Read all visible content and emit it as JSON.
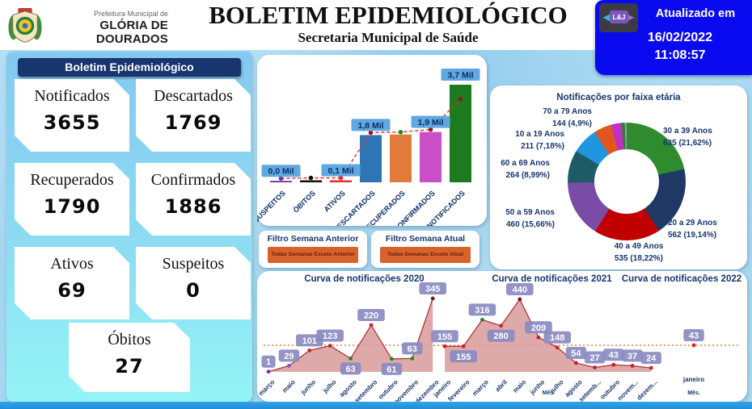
{
  "header": {
    "org_small": "Prefeitura Municipal de",
    "org_name": "GLÓRIA DE DOURADOS",
    "title": "BOLETIM EPIDEMIOLÓGICO",
    "subtitle": "Secretaria Municipal de Saúde"
  },
  "update_box": {
    "logo_text": "L&J",
    "label": "Atualizado em",
    "date": "16/02/2022",
    "time": "11:08:57",
    "bg_color": "#0a0af0"
  },
  "summary_panel": {
    "title": "Boletim Epidemiológico",
    "cards": [
      {
        "label": "Notificados",
        "value": "3655"
      },
      {
        "label": "Descartados",
        "value": "1769"
      },
      {
        "label": "Recuperados",
        "value": "1790"
      },
      {
        "label": "Confirmados",
        "value": "1886"
      },
      {
        "label": "Ativos",
        "value": "69"
      },
      {
        "label": "Suspeitos",
        "value": "0"
      },
      {
        "label": "Óbitos",
        "value": "27"
      }
    ]
  },
  "filters": [
    {
      "title": "Filtro Semana Anterior",
      "button_label": "Todas Semanas Exceto Anterior"
    },
    {
      "title": "Filtro Semana Atual",
      "button_label": "Todas Semanas Exceto Atual"
    }
  ],
  "chart_data": [
    {
      "type": "bar",
      "name": "totais-por-status",
      "categories": [
        "SUSPEITOS",
        "ÓBITOS",
        "ATIVOS",
        "DESCARTADOS",
        "RECUPERADOS",
        "CONFIRMADOS",
        "NOTIFICADOS"
      ],
      "values": [
        0,
        27,
        69,
        1769,
        1790,
        1886,
        3655
      ],
      "value_labels": [
        "0,0 Mil",
        "",
        "0,1 Mil",
        "1,8 Mil",
        "",
        "1,9 Mil",
        "3,7 Mil"
      ],
      "bar_colors": [
        "#7030a0",
        "#111111",
        "#e03030",
        "#2e75b6",
        "#e07b39",
        "#c94fc9",
        "#1e7a1e"
      ],
      "dot_colors": [
        "#7030a0",
        "#111111",
        "#e03030",
        "#8b1a1a",
        "#1f8a1f",
        "#8b1a1a",
        "#8b1a1a"
      ],
      "trend_line_color": "#ff2222",
      "label_bg": "#5fa8e0",
      "label_fg": "#0e2b66",
      "ylim": [
        0,
        3700
      ]
    },
    {
      "type": "pie",
      "name": "faixa-etaria",
      "title": "Notificações por faixa etária",
      "slices": [
        {
          "label": "30 a 39 Anos",
          "text": "635 (21,62%)",
          "value": 635,
          "pct": 21.62,
          "color": "#2e8b2e"
        },
        {
          "label": "20 a 29 Anos",
          "text": "562 (19,14%)",
          "value": 562,
          "pct": 19.14,
          "color": "#1f3864"
        },
        {
          "label": "40 a 49 Anos",
          "text": "535 (18,22%)",
          "value": 535,
          "pct": 18.22,
          "color": "#c00000"
        },
        {
          "label": "50 a 59 Anos",
          "text": "460 (15,66%)",
          "value": 460,
          "pct": 15.66,
          "color": "#7a4ca8"
        },
        {
          "label": "60 a 69 Anos",
          "text": "264 (8,99%)",
          "value": 264,
          "pct": 8.99,
          "color": "#1f5b66"
        },
        {
          "label": "10 a 19 Anos",
          "text": "211 (7,18%)",
          "value": 211,
          "pct": 7.18,
          "color": "#2196e0"
        },
        {
          "label": "70 a 79 Anos",
          "text": "144 (4,9%)",
          "value": 144,
          "pct": 4.9,
          "color": "#e0561e"
        },
        {
          "label": "",
          "text": "",
          "value": 84,
          "pct": 2.86,
          "color": "#c32fc3"
        },
        {
          "label": "",
          "text": "",
          "value": 27,
          "pct": 0.92,
          "color": "#2f7f33"
        },
        {
          "label": "",
          "text": "",
          "value": 15,
          "pct": 0.51,
          "color": "#90a0ac"
        }
      ]
    },
    {
      "type": "area",
      "name": "curva-2020",
      "title": "Curva de notificações 2020",
      "x": [
        "março",
        "maio",
        "junho",
        "julho",
        "agosto",
        "setembro",
        "outubro",
        "novembro",
        "dezembro"
      ],
      "values": [
        1,
        29,
        101,
        123,
        63,
        220,
        61,
        63,
        345
      ],
      "label_below_idx": [
        4,
        6
      ],
      "dot_colors": [
        "#7030a0",
        "#8f4fbf",
        "#c02233",
        "#c02233",
        "#1f8a1f",
        "#c02233",
        "#1f8a1f",
        "#1f8a1f",
        "#7b1022"
      ],
      "xlabel": ""
    },
    {
      "type": "area",
      "name": "curva-2021",
      "title": "Curva de notificações 2021",
      "x": [
        "janeiro",
        "fevereiro",
        "março",
        "abril",
        "maio",
        "junho",
        "julho",
        "agosto",
        "setemb...",
        "outubro",
        "novem...",
        "dezem..."
      ],
      "values": [
        155,
        155,
        316,
        280,
        440,
        209,
        148,
        54,
        27,
        43,
        37,
        24
      ],
      "label_below_idx": [
        1,
        3
      ],
      "dot_colors": [
        "#c02233",
        "#c02233",
        "#1f8a1f",
        "#c02233",
        "#7b1022",
        "#c02233",
        "#c02233",
        "#c02233",
        "#c02233",
        "#c02233",
        "#c02233",
        "#c02233"
      ],
      "xlabel": "Mês"
    },
    {
      "type": "area",
      "name": "curva-2022",
      "title": "Curva de notificações 2022",
      "x": [
        "janeiro"
      ],
      "values": [
        43
      ],
      "label_below_idx": [],
      "dot_colors": [
        "#e02020"
      ],
      "xlabel": "Mês."
    }
  ],
  "style_colors": {
    "area_fill": "#d89a9a",
    "area_line": "#b03636",
    "curve_label_bg": "#8b8bc2",
    "avg_line": "#ed7d31",
    "axis_text": "#16356e"
  }
}
